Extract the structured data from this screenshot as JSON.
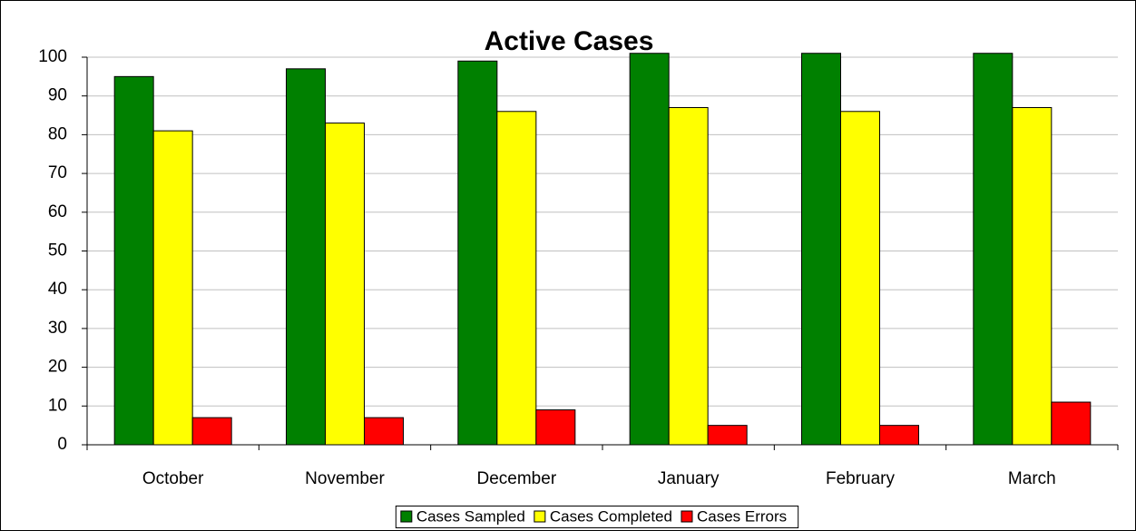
{
  "chart_data": {
    "type": "bar",
    "title": "Active Cases",
    "categories": [
      "October",
      "November",
      "December",
      "January",
      "February",
      "March"
    ],
    "series": [
      {
        "name": "Cases Sampled",
        "color": "#008000",
        "values": [
          95,
          97,
          99,
          101,
          101,
          101
        ]
      },
      {
        "name": "Cases Completed",
        "color": "#ffff00",
        "values": [
          81,
          83,
          86,
          87,
          86,
          87
        ]
      },
      {
        "name": "Cases Errors",
        "color": "#ff0000",
        "values": [
          7,
          7,
          9,
          5,
          5,
          11
        ]
      }
    ],
    "ylim": [
      0,
      100
    ],
    "yticks": [
      0,
      10,
      20,
      30,
      40,
      50,
      60,
      70,
      80,
      90,
      100
    ],
    "grid": true,
    "legend": "bottom"
  }
}
